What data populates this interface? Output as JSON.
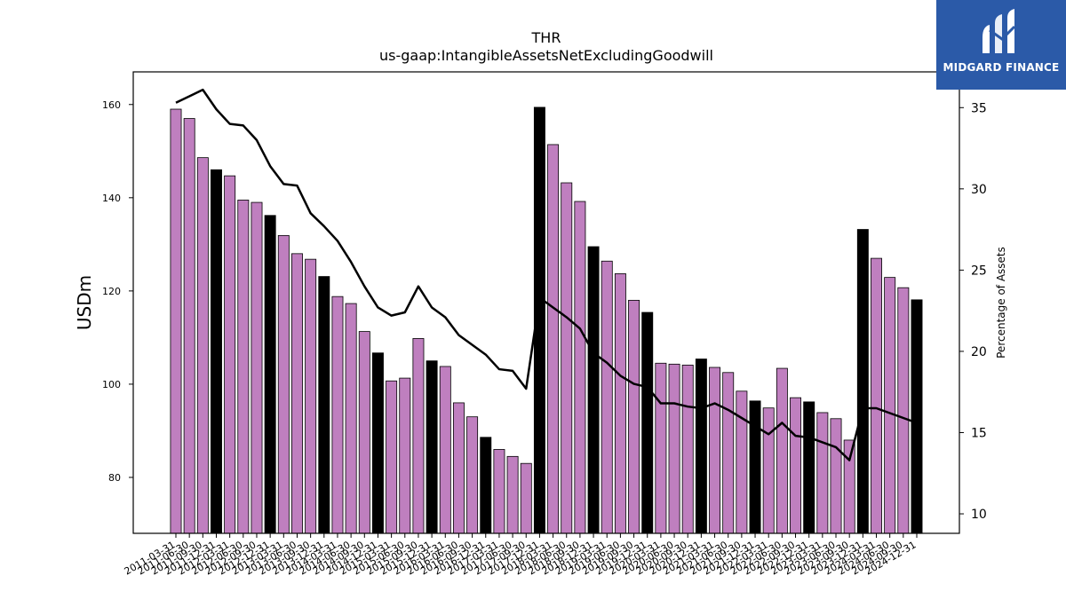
{
  "chart_data": {
    "type": "bar",
    "title": "THR",
    "subtitle": "us-gaap:IntangibleAssetsNetExcludingGoodwill",
    "ylabel": "USDm",
    "y2label": "Percentage of Assets",
    "ylim": [
      68,
      167
    ],
    "y2lim": [
      8.8,
      37.2
    ],
    "yticks": [
      80,
      100,
      120,
      140,
      160
    ],
    "y2ticks": [
      10,
      15,
      20,
      25,
      30,
      35
    ],
    "categories": [
      "2011-03-31",
      "2011-06-30",
      "2011-09-30",
      "2011-12-31",
      "2012-03-31",
      "2012-06-30",
      "2012-09-30",
      "2012-12-31",
      "2013-03-31",
      "2013-06-30",
      "2013-09-30",
      "2013-12-31",
      "2014-03-31",
      "2014-06-30",
      "2014-09-30",
      "2014-12-31",
      "2015-03-31",
      "2015-06-30",
      "2015-09-30",
      "2015-12-31",
      "2016-03-31",
      "2016-06-30",
      "2016-09-30",
      "2016-12-31",
      "2017-03-31",
      "2017-06-30",
      "2017-09-30",
      "2017-12-31",
      "2018-03-31",
      "2018-06-30",
      "2018-09-30",
      "2018-12-31",
      "2019-03-31",
      "2019-06-30",
      "2019-09-30",
      "2019-12-31",
      "2020-03-31",
      "2020-06-30",
      "2020-09-30",
      "2020-12-31",
      "2021-03-31",
      "2021-06-30",
      "2021-09-30",
      "2021-12-31",
      "2022-03-31",
      "2022-06-30",
      "2022-09-30",
      "2022-12-31",
      "2023-03-31",
      "2023-06-30",
      "2023-09-30",
      "2023-12-31",
      "2024-03-31",
      "2024-06-30",
      "2024-09-30",
      "2024-12-31"
    ],
    "series": [
      {
        "type": "bar",
        "values": [
          159.0,
          157.0,
          148.6,
          146.0,
          144.7,
          139.5,
          139.0,
          136.2,
          131.9,
          128.0,
          126.8,
          123.1,
          118.8,
          117.3,
          111.3,
          106.7,
          100.7,
          101.3,
          109.8,
          105.0,
          103.8,
          96.0,
          93.0,
          88.6,
          86.0,
          84.5,
          83.0,
          159.4,
          151.4,
          143.2,
          139.2,
          129.5,
          126.4,
          123.7,
          118.0,
          115.4,
          104.5,
          104.3,
          104.1,
          105.4,
          103.6,
          102.5,
          98.5,
          96.4,
          94.9,
          103.4,
          97.1,
          96.2,
          93.9,
          92.6,
          88.0,
          133.2,
          127.0,
          122.9,
          120.7,
          118.1
        ],
        "highlight": [
          false,
          false,
          false,
          true,
          false,
          false,
          false,
          true,
          false,
          false,
          false,
          true,
          false,
          false,
          false,
          true,
          false,
          false,
          false,
          true,
          false,
          false,
          false,
          true,
          false,
          false,
          false,
          true,
          false,
          false,
          false,
          true,
          false,
          false,
          false,
          true,
          false,
          false,
          false,
          true,
          false,
          false,
          false,
          true,
          false,
          false,
          false,
          true,
          false,
          false,
          false,
          true,
          false,
          false,
          false,
          true
        ]
      },
      {
        "type": "line",
        "axis": "right",
        "values": [
          35.3,
          35.7,
          36.1,
          34.9,
          34.0,
          33.9,
          33.0,
          31.4,
          30.3,
          30.2,
          28.5,
          27.7,
          26.8,
          25.5,
          24.0,
          22.7,
          22.2,
          22.4,
          24.0,
          22.7,
          22.1,
          21.0,
          20.4,
          19.8,
          18.9,
          18.8,
          17.7,
          23.3,
          22.7,
          22.1,
          21.4,
          19.9,
          19.3,
          18.5,
          18.0,
          17.8,
          16.8,
          16.8,
          16.6,
          16.5,
          16.8,
          16.4,
          15.9,
          15.4,
          14.9,
          15.6,
          14.8,
          14.7,
          14.4,
          14.1,
          13.3,
          16.5,
          16.5,
          16.2,
          15.9,
          15.6
        ]
      }
    ],
    "colors": {
      "bar": "#bf7fbf",
      "highlight_bar": "#000000",
      "line": "#000000"
    }
  },
  "logo": {
    "text": "MIDGARD FINANCE",
    "background": "#2b5aa8"
  }
}
